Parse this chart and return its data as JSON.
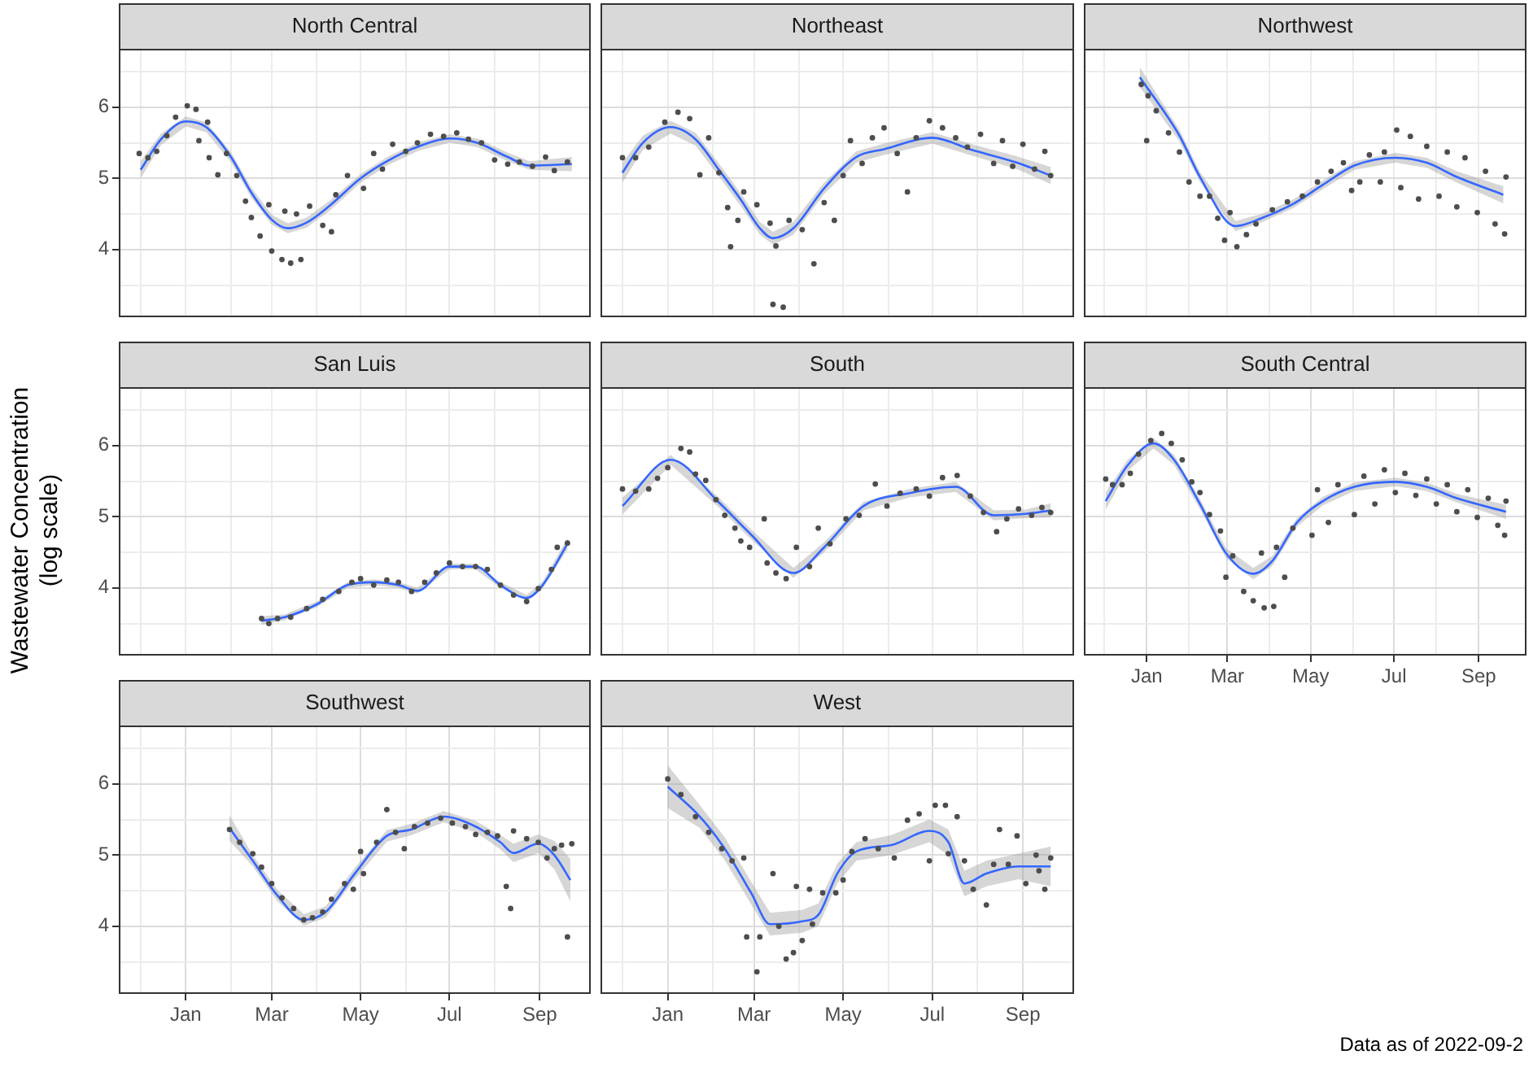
{
  "chart_data": [
    {
      "type": "scatter",
      "title": "North Central",
      "tick_labels": "y",
      "grid": true,
      "xlim": [
        "2021-11-16",
        "2022-10-06"
      ],
      "ylim": [
        3.05,
        6.82
      ],
      "xticks": [
        {
          "value": "2021-12-01",
          "label": null
        },
        {
          "value": "2022-01-01",
          "label": null
        },
        {
          "value": "2022-02-01",
          "label": null
        },
        {
          "value": "2022-03-01",
          "label": null
        },
        {
          "value": "2022-04-01",
          "label": null
        },
        {
          "value": "2022-05-01",
          "label": null
        },
        {
          "value": "2022-06-01",
          "label": null
        },
        {
          "value": "2022-07-01",
          "label": null
        },
        {
          "value": "2022-08-01",
          "label": null
        },
        {
          "value": "2022-09-01",
          "label": null
        }
      ],
      "yticks": [
        {
          "value": 3.5,
          "label": null
        },
        4,
        {
          "value": 4.5,
          "label": null
        },
        5,
        {
          "value": 5.5,
          "label": null
        },
        6,
        {
          "value": 6.5,
          "label": null
        }
      ],
      "series": [
        {
          "type": "scatter",
          "color": "#4d4d4d",
          "x": [
            "2021-11-30",
            "2021-12-06",
            "2021-12-12",
            "2021-12-19",
            "2021-12-25",
            "2022-01-02",
            "2022-01-08",
            "2022-01-10",
            "2022-01-16",
            "2022-01-17",
            "2022-01-23",
            "2022-01-29",
            "2022-02-05",
            "2022-02-11",
            "2022-02-15",
            "2022-02-21",
            "2022-02-27",
            "2022-03-01",
            "2022-03-08",
            "2022-03-10",
            "2022-03-14",
            "2022-03-18",
            "2022-03-21",
            "2022-03-27",
            "2022-04-05",
            "2022-04-11",
            "2022-04-14",
            "2022-04-22",
            "2022-05-03",
            "2022-05-10",
            "2022-05-16",
            "2022-05-23",
            "2022-06-01",
            "2022-06-09",
            "2022-06-18",
            "2022-06-27",
            "2022-07-06",
            "2022-07-14",
            "2022-07-23",
            "2022-08-01",
            "2022-08-10",
            "2022-08-18",
            "2022-08-27",
            "2022-09-05",
            "2022-09-11",
            "2022-09-20"
          ],
          "values": [
            5.35,
            5.29,
            5.38,
            5.6,
            5.86,
            6.02,
            5.97,
            5.53,
            5.79,
            5.29,
            5.05,
            5.35,
            5.04,
            4.68,
            4.45,
            4.19,
            4.63,
            3.98,
            3.86,
            4.54,
            3.81,
            4.5,
            3.86,
            4.61,
            4.34,
            4.25,
            4.77,
            5.04,
            4.86,
            5.35,
            5.13,
            5.48,
            5.38,
            5.5,
            5.62,
            5.59,
            5.64,
            5.55,
            5.5,
            5.26,
            5.2,
            5.23,
            5.17,
            5.3,
            5.11,
            5.23
          ]
        },
        {
          "type": "line",
          "color": "#3366ff",
          "x": [
            "2021-12-01",
            "2021-12-15",
            "2022-01-01",
            "2022-01-15",
            "2022-02-01",
            "2022-02-15",
            "2022-03-01",
            "2022-03-12",
            "2022-03-25",
            "2022-04-10",
            "2022-05-01",
            "2022-05-20",
            "2022-06-10",
            "2022-07-01",
            "2022-07-20",
            "2022-08-10",
            "2022-08-25",
            "2022-09-23"
          ],
          "values": [
            5.12,
            5.55,
            5.8,
            5.72,
            5.3,
            4.8,
            4.42,
            4.3,
            4.38,
            4.62,
            5.0,
            5.25,
            5.45,
            5.56,
            5.5,
            5.3,
            5.18,
            5.2
          ],
          "lower": [
            5.0,
            5.47,
            5.73,
            5.65,
            5.23,
            4.73,
            4.35,
            4.23,
            4.31,
            4.55,
            4.94,
            5.19,
            5.39,
            5.5,
            5.44,
            5.24,
            5.12,
            5.1
          ],
          "upper": [
            5.24,
            5.63,
            5.87,
            5.79,
            5.37,
            4.87,
            4.49,
            4.37,
            4.45,
            4.69,
            5.06,
            5.31,
            5.51,
            5.62,
            5.56,
            5.36,
            5.24,
            5.3
          ]
        }
      ]
    },
    {
      "type": "scatter",
      "title": "Northeast",
      "tick_labels": false,
      "grid": true,
      "xlim": [
        "2021-11-16",
        "2022-10-06"
      ],
      "ylim": [
        3.05,
        6.82
      ],
      "xticks": [
        {
          "value": "2021-12-01",
          "label": null
        },
        {
          "value": "2022-01-01",
          "label": null
        },
        {
          "value": "2022-02-01",
          "label": null
        },
        {
          "value": "2022-03-01",
          "label": null
        },
        {
          "value": "2022-04-01",
          "label": null
        },
        {
          "value": "2022-05-01",
          "label": null
        },
        {
          "value": "2022-06-01",
          "label": null
        },
        {
          "value": "2022-07-01",
          "label": null
        },
        {
          "value": "2022-08-01",
          "label": null
        },
        {
          "value": "2022-09-01",
          "label": null
        }
      ],
      "yticks": [
        {
          "value": 3.5,
          "label": null
        },
        4,
        {
          "value": 4.5,
          "label": null
        },
        5,
        {
          "value": 5.5,
          "label": null
        },
        6,
        {
          "value": 6.5,
          "label": null
        }
      ],
      "series": [
        {
          "type": "scatter",
          "color": "#4d4d4d",
          "x": [
            "2021-12-01",
            "2021-12-10",
            "2021-12-19",
            "2021-12-30",
            "2022-01-08",
            "2022-01-16",
            "2022-01-23",
            "2022-01-29",
            "2022-02-05",
            "2022-02-11",
            "2022-02-13",
            "2022-02-18",
            "2022-02-22",
            "2022-03-03",
            "2022-03-12",
            "2022-03-14",
            "2022-03-16",
            "2022-03-21",
            "2022-03-25",
            "2022-04-03",
            "2022-04-11",
            "2022-04-18",
            "2022-04-25",
            "2022-05-01",
            "2022-05-06",
            "2022-05-14",
            "2022-05-21",
            "2022-05-29",
            "2022-06-07",
            "2022-06-14",
            "2022-06-20",
            "2022-06-29",
            "2022-07-08",
            "2022-07-17",
            "2022-07-25",
            "2022-08-03",
            "2022-08-12",
            "2022-08-18",
            "2022-08-25",
            "2022-09-01",
            "2022-09-09",
            "2022-09-16",
            "2022-09-20"
          ],
          "values": [
            5.29,
            5.29,
            5.44,
            5.79,
            5.93,
            5.84,
            5.05,
            5.57,
            5.08,
            4.59,
            4.04,
            4.41,
            4.81,
            4.63,
            4.37,
            3.23,
            4.05,
            3.19,
            4.41,
            4.28,
            3.8,
            4.66,
            4.41,
            5.04,
            5.53,
            5.21,
            5.57,
            5.71,
            5.35,
            4.81,
            5.57,
            5.81,
            5.71,
            5.57,
            5.44,
            5.62,
            5.21,
            5.53,
            5.17,
            5.48,
            5.13,
            5.38,
            5.04
          ]
        },
        {
          "type": "line",
          "color": "#3366ff",
          "x": [
            "2021-12-01",
            "2021-12-15",
            "2022-01-03",
            "2022-01-20",
            "2022-02-05",
            "2022-02-20",
            "2022-03-05",
            "2022-03-14",
            "2022-03-28",
            "2022-04-18",
            "2022-05-10",
            "2022-05-29",
            "2022-07-01",
            "2022-07-28",
            "2022-08-28",
            "2022-09-20"
          ],
          "values": [
            5.08,
            5.5,
            5.72,
            5.55,
            5.12,
            4.7,
            4.3,
            4.16,
            4.3,
            4.86,
            5.3,
            5.41,
            5.57,
            5.4,
            5.22,
            5.04
          ],
          "lower": [
            4.94,
            5.4,
            5.63,
            5.46,
            5.03,
            4.61,
            4.21,
            4.07,
            4.21,
            4.78,
            5.22,
            5.33,
            5.49,
            5.32,
            5.13,
            4.92
          ],
          "upper": [
            5.22,
            5.6,
            5.81,
            5.64,
            5.21,
            4.79,
            4.39,
            4.25,
            4.39,
            4.94,
            5.38,
            5.49,
            5.65,
            5.48,
            5.31,
            5.16
          ]
        }
      ]
    },
    {
      "type": "scatter",
      "title": "Northwest",
      "tick_labels": false,
      "grid": true,
      "xlim": [
        "2021-11-16",
        "2022-10-06"
      ],
      "ylim": [
        3.05,
        6.82
      ],
      "xticks": [
        {
          "value": "2021-12-01",
          "label": null
        },
        {
          "value": "2022-01-01",
          "label": null
        },
        {
          "value": "2022-02-01",
          "label": null
        },
        {
          "value": "2022-03-01",
          "label": null
        },
        {
          "value": "2022-04-01",
          "label": null
        },
        {
          "value": "2022-05-01",
          "label": null
        },
        {
          "value": "2022-06-01",
          "label": null
        },
        {
          "value": "2022-07-01",
          "label": null
        },
        {
          "value": "2022-08-01",
          "label": null
        },
        {
          "value": "2022-09-01",
          "label": null
        }
      ],
      "yticks": [
        {
          "value": 3.5,
          "label": null
        },
        4,
        {
          "value": 4.5,
          "label": null
        },
        5,
        {
          "value": 5.5,
          "label": null
        },
        6,
        {
          "value": 6.5,
          "label": null
        }
      ],
      "series": [
        {
          "type": "scatter",
          "color": "#4d4d4d",
          "x": [
            "2021-12-28",
            "2022-01-01",
            "2022-01-02",
            "2022-01-08",
            "2022-01-17",
            "2022-01-25",
            "2022-02-01",
            "2022-02-09",
            "2022-02-16",
            "2022-02-22",
            "2022-02-27",
            "2022-03-03",
            "2022-03-08",
            "2022-03-15",
            "2022-03-22",
            "2022-04-03",
            "2022-04-14",
            "2022-04-25",
            "2022-05-06",
            "2022-05-16",
            "2022-05-25",
            "2022-05-31",
            "2022-06-06",
            "2022-06-13",
            "2022-06-21",
            "2022-06-24",
            "2022-07-03",
            "2022-07-06",
            "2022-07-13",
            "2022-07-19",
            "2022-07-25",
            "2022-08-03",
            "2022-08-09",
            "2022-08-16",
            "2022-08-22",
            "2022-08-31",
            "2022-09-06",
            "2022-09-13",
            "2022-09-20",
            "2022-09-21"
          ],
          "values": [
            6.32,
            5.53,
            6.16,
            5.95,
            5.64,
            5.37,
            4.95,
            4.75,
            4.75,
            4.44,
            4.13,
            4.52,
            4.04,
            4.21,
            4.36,
            4.56,
            4.67,
            4.75,
            4.95,
            5.1,
            5.22,
            4.83,
            4.95,
            5.33,
            4.95,
            5.37,
            5.68,
            4.87,
            5.59,
            4.71,
            5.45,
            4.75,
            5.37,
            4.6,
            5.29,
            4.52,
            5.1,
            4.36,
            4.22,
            5.02
          ]
        },
        {
          "type": "line",
          "color": "#3366ff",
          "x": [
            "2021-12-27",
            "2022-01-25",
            "2022-02-09",
            "2022-03-07",
            "2022-03-26",
            "2022-04-18",
            "2022-05-10",
            "2022-06-02",
            "2022-07-02",
            "2022-07-25",
            "2022-08-16",
            "2022-09-19"
          ],
          "values": [
            6.42,
            5.6,
            5.02,
            4.33,
            4.44,
            4.64,
            4.91,
            5.18,
            5.29,
            5.22,
            5.02,
            4.77
          ],
          "lower": [
            6.28,
            5.52,
            4.95,
            4.26,
            4.38,
            4.58,
            4.85,
            5.12,
            5.22,
            5.15,
            4.94,
            4.65
          ],
          "upper": [
            6.56,
            5.68,
            5.09,
            4.4,
            4.5,
            4.7,
            4.97,
            5.24,
            5.36,
            5.29,
            5.1,
            4.89
          ]
        }
      ]
    },
    {
      "type": "scatter",
      "title": "San Luis",
      "tick_labels": "y",
      "grid": true,
      "ylabel": "Wastewater Concentration (log scale)",
      "xlim": [
        "2021-11-16",
        "2022-10-06"
      ],
      "ylim": [
        3.05,
        6.82
      ],
      "xticks": [
        {
          "value": "2021-12-01",
          "label": null
        },
        {
          "value": "2022-01-01",
          "label": null
        },
        {
          "value": "2022-02-01",
          "label": null
        },
        {
          "value": "2022-03-01",
          "label": null
        },
        {
          "value": "2022-04-01",
          "label": null
        },
        {
          "value": "2022-05-01",
          "label": null
        },
        {
          "value": "2022-06-01",
          "label": null
        },
        {
          "value": "2022-07-01",
          "label": null
        },
        {
          "value": "2022-08-01",
          "label": null
        },
        {
          "value": "2022-09-01",
          "label": null
        }
      ],
      "yticks": [
        {
          "value": 3.5,
          "label": null
        },
        4,
        {
          "value": 4.5,
          "label": null
        },
        5,
        {
          "value": 5.5,
          "label": null
        },
        6,
        {
          "value": 6.5,
          "label": null
        }
      ],
      "series": [
        {
          "type": "scatter",
          "color": "#4d4d4d",
          "x": [
            "2022-02-22",
            "2022-02-27",
            "2022-03-05",
            "2022-03-14",
            "2022-03-25",
            "2022-04-05",
            "2022-04-16",
            "2022-04-25",
            "2022-05-01",
            "2022-05-10",
            "2022-05-19",
            "2022-05-27",
            "2022-06-05",
            "2022-06-14",
            "2022-06-22",
            "2022-07-01",
            "2022-07-10",
            "2022-07-19",
            "2022-07-27",
            "2022-08-05",
            "2022-08-14",
            "2022-08-23",
            "2022-08-31",
            "2022-09-09",
            "2022-09-13",
            "2022-09-20"
          ],
          "values": [
            3.57,
            3.5,
            3.57,
            3.59,
            3.71,
            3.84,
            3.95,
            4.08,
            4.13,
            4.04,
            4.11,
            4.08,
            3.95,
            4.08,
            4.21,
            4.35,
            4.3,
            4.3,
            4.26,
            4.04,
            3.9,
            3.81,
            3.99,
            4.26,
            4.57,
            4.63
          ]
        },
        {
          "type": "line",
          "color": "#3366ff",
          "x": [
            "2022-02-22",
            "2022-03-10",
            "2022-04-01",
            "2022-04-22",
            "2022-05-10",
            "2022-05-27",
            "2022-06-09",
            "2022-07-01",
            "2022-07-19",
            "2022-08-05",
            "2022-08-23",
            "2022-09-03",
            "2022-09-20"
          ],
          "values": [
            3.54,
            3.59,
            3.77,
            4.04,
            4.08,
            4.04,
            3.96,
            4.3,
            4.3,
            4.04,
            3.86,
            4.04,
            4.62
          ],
          "lower": [
            3.48,
            3.55,
            3.73,
            4.0,
            4.04,
            4.0,
            3.92,
            4.26,
            4.26,
            4.0,
            3.82,
            3.99,
            4.54
          ],
          "upper": [
            3.6,
            3.63,
            3.81,
            4.08,
            4.12,
            4.08,
            4.0,
            4.34,
            4.34,
            4.08,
            3.9,
            4.09,
            4.7
          ]
        }
      ]
    },
    {
      "type": "scatter",
      "title": "South",
      "tick_labels": false,
      "grid": true,
      "xlim": [
        "2021-11-16",
        "2022-10-06"
      ],
      "ylim": [
        3.05,
        6.82
      ],
      "xticks": [
        {
          "value": "2021-12-01",
          "label": null
        },
        {
          "value": "2022-01-01",
          "label": null
        },
        {
          "value": "2022-02-01",
          "label": null
        },
        {
          "value": "2022-03-01",
          "label": null
        },
        {
          "value": "2022-04-01",
          "label": null
        },
        {
          "value": "2022-05-01",
          "label": null
        },
        {
          "value": "2022-06-01",
          "label": null
        },
        {
          "value": "2022-07-01",
          "label": null
        },
        {
          "value": "2022-08-01",
          "label": null
        },
        {
          "value": "2022-09-01",
          "label": null
        }
      ],
      "yticks": [
        {
          "value": 3.5,
          "label": null
        },
        4,
        {
          "value": 4.5,
          "label": null
        },
        5,
        {
          "value": 5.5,
          "label": null
        },
        6,
        {
          "value": 6.5,
          "label": null
        }
      ],
      "series": [
        {
          "type": "scatter",
          "color": "#4d4d4d",
          "x": [
            "2021-12-01",
            "2021-12-10",
            "2021-12-19",
            "2021-12-25",
            "2022-01-01",
            "2022-01-10",
            "2022-01-16",
            "2022-01-20",
            "2022-01-27",
            "2022-02-03",
            "2022-02-09",
            "2022-02-16",
            "2022-02-20",
            "2022-02-26",
            "2022-03-08",
            "2022-03-10",
            "2022-03-16",
            "2022-03-23",
            "2022-03-30",
            "2022-04-08",
            "2022-04-14",
            "2022-04-22",
            "2022-05-03",
            "2022-05-12",
            "2022-05-23",
            "2022-05-31",
            "2022-06-09",
            "2022-06-20",
            "2022-06-29",
            "2022-07-08",
            "2022-07-18",
            "2022-07-27",
            "2022-08-05",
            "2022-08-14",
            "2022-08-21",
            "2022-08-29",
            "2022-09-07",
            "2022-09-14",
            "2022-09-20"
          ],
          "values": [
            5.39,
            5.36,
            5.39,
            5.54,
            5.69,
            5.96,
            5.91,
            5.6,
            5.51,
            5.24,
            5.02,
            4.84,
            4.66,
            4.57,
            4.97,
            4.35,
            4.21,
            4.13,
            4.57,
            4.3,
            4.84,
            4.62,
            4.97,
            5.02,
            5.46,
            5.15,
            5.33,
            5.39,
            5.29,
            5.55,
            5.58,
            5.29,
            5.06,
            4.79,
            4.97,
            5.11,
            5.02,
            5.13,
            5.06
          ]
        },
        {
          "type": "line",
          "color": "#3366ff",
          "x": [
            "2021-12-01",
            "2022-01-03",
            "2022-02-05",
            "2022-02-27",
            "2022-03-28",
            "2022-04-18",
            "2022-05-15",
            "2022-06-15",
            "2022-07-17",
            "2022-08-12",
            "2022-09-03",
            "2022-09-20"
          ],
          "values": [
            5.15,
            5.8,
            5.2,
            4.75,
            4.21,
            4.57,
            5.15,
            5.33,
            5.42,
            5.02,
            5.04,
            5.09
          ],
          "lower": [
            5.03,
            5.73,
            5.13,
            4.68,
            4.14,
            4.5,
            5.09,
            5.27,
            5.35,
            4.95,
            4.98,
            4.99
          ],
          "upper": [
            5.27,
            5.87,
            5.27,
            4.82,
            4.28,
            4.64,
            5.21,
            5.39,
            5.49,
            5.09,
            5.1,
            5.19
          ]
        }
      ]
    },
    {
      "type": "scatter",
      "title": "South Central",
      "tick_labels": "x",
      "grid": true,
      "xlim": [
        "2021-11-16",
        "2022-10-06"
      ],
      "ylim": [
        3.05,
        6.82
      ],
      "xticks": [
        {
          "value": "2021-12-01",
          "label": null
        },
        {
          "value": "2022-01-01",
          "label": "Jan"
        },
        {
          "value": "2022-02-01",
          "label": null
        },
        {
          "value": "2022-03-01",
          "label": "Mar"
        },
        {
          "value": "2022-04-01",
          "label": null
        },
        {
          "value": "2022-05-01",
          "label": "May"
        },
        {
          "value": "2022-06-01",
          "label": null
        },
        {
          "value": "2022-07-01",
          "label": "Jul"
        },
        {
          "value": "2022-08-01",
          "label": null
        },
        {
          "value": "2022-09-01",
          "label": "Sep"
        }
      ],
      "yticks": [
        {
          "value": 3.5,
          "label": null
        },
        4,
        {
          "value": 4.5,
          "label": null
        },
        5,
        {
          "value": 5.5,
          "label": null
        },
        6,
        {
          "value": 6.5,
          "label": null
        }
      ],
      "series": [
        {
          "type": "scatter",
          "color": "#4d4d4d",
          "x": [
            "2021-12-02",
            "2021-12-07",
            "2021-12-14",
            "2021-12-20",
            "2021-12-26",
            "2022-01-04",
            "2022-01-12",
            "2022-01-19",
            "2022-01-27",
            "2022-02-03",
            "2022-02-09",
            "2022-02-16",
            "2022-02-24",
            "2022-02-28",
            "2022-03-05",
            "2022-03-13",
            "2022-03-20",
            "2022-03-26",
            "2022-03-28",
            "2022-04-04",
            "2022-04-06",
            "2022-04-12",
            "2022-04-18",
            "2022-05-02",
            "2022-05-06",
            "2022-05-14",
            "2022-05-21",
            "2022-06-02",
            "2022-06-09",
            "2022-06-17",
            "2022-06-24",
            "2022-07-02",
            "2022-07-09",
            "2022-07-17",
            "2022-07-25",
            "2022-08-01",
            "2022-08-09",
            "2022-08-16",
            "2022-08-24",
            "2022-08-31",
            "2022-09-08",
            "2022-09-15",
            "2022-09-20",
            "2022-09-21"
          ],
          "values": [
            5.53,
            5.45,
            5.45,
            5.61,
            5.88,
            6.07,
            6.17,
            6.03,
            5.8,
            5.49,
            5.34,
            5.03,
            4.8,
            4.15,
            4.45,
            3.95,
            3.82,
            4.49,
            3.72,
            3.74,
            4.57,
            4.15,
            4.84,
            4.74,
            5.38,
            4.92,
            5.45,
            5.03,
            5.57,
            5.18,
            5.66,
            5.34,
            5.61,
            5.3,
            5.53,
            5.18,
            5.45,
            5.07,
            5.38,
            4.99,
            5.26,
            4.88,
            4.74,
            5.22
          ]
        },
        {
          "type": "line",
          "color": "#3366ff",
          "x": [
            "2021-12-02",
            "2021-12-18",
            "2022-01-06",
            "2022-01-21",
            "2022-02-09",
            "2022-02-28",
            "2022-03-20",
            "2022-04-03",
            "2022-04-21",
            "2022-05-10",
            "2022-06-02",
            "2022-07-02",
            "2022-07-25",
            "2022-08-16",
            "2022-09-21"
          ],
          "values": [
            5.22,
            5.72,
            6.03,
            5.8,
            5.18,
            4.49,
            4.2,
            4.38,
            4.92,
            5.22,
            5.42,
            5.49,
            5.42,
            5.26,
            5.07
          ],
          "lower": [
            5.1,
            5.64,
            5.96,
            5.73,
            5.11,
            4.42,
            4.12,
            4.31,
            4.86,
            5.16,
            5.36,
            5.43,
            5.36,
            5.2,
            4.97
          ],
          "upper": [
            5.34,
            5.8,
            6.1,
            5.87,
            5.25,
            4.56,
            4.28,
            4.45,
            4.98,
            5.28,
            5.48,
            5.55,
            5.48,
            5.32,
            5.17
          ]
        }
      ]
    },
    {
      "type": "scatter",
      "title": "Southwest",
      "grid": true,
      "xlim": [
        "2021-11-16",
        "2022-10-06"
      ],
      "ylim": [
        3.05,
        6.82
      ],
      "xticks": [
        {
          "value": "2021-12-01",
          "label": null
        },
        {
          "value": "2022-01-01",
          "label": "Jan"
        },
        {
          "value": "2022-02-01",
          "label": null
        },
        {
          "value": "2022-03-01",
          "label": "Mar"
        },
        {
          "value": "2022-04-01",
          "label": null
        },
        {
          "value": "2022-05-01",
          "label": "May"
        },
        {
          "value": "2022-06-01",
          "label": null
        },
        {
          "value": "2022-07-01",
          "label": "Jul"
        },
        {
          "value": "2022-08-01",
          "label": null
        },
        {
          "value": "2022-09-01",
          "label": "Sep"
        }
      ],
      "yticks": [
        {
          "value": 3.5,
          "label": null
        },
        4,
        {
          "value": 4.5,
          "label": null
        },
        5,
        {
          "value": 5.5,
          "label": null
        },
        6,
        {
          "value": 6.5,
          "label": null
        }
      ],
      "series": [
        {
          "type": "scatter",
          "color": "#4d4d4d",
          "x": [
            "2022-01-31",
            "2022-02-07",
            "2022-02-16",
            "2022-02-22",
            "2022-03-01",
            "2022-03-08",
            "2022-03-16",
            "2022-03-23",
            "2022-03-29",
            "2022-04-05",
            "2022-04-11",
            "2022-04-20",
            "2022-04-26",
            "2022-05-01",
            "2022-05-03",
            "2022-05-12",
            "2022-05-19",
            "2022-05-25",
            "2022-05-31",
            "2022-06-07",
            "2022-06-16",
            "2022-06-25",
            "2022-07-03",
            "2022-07-12",
            "2022-07-19",
            "2022-07-27",
            "2022-08-03",
            "2022-08-09",
            "2022-08-12",
            "2022-08-14",
            "2022-08-23",
            "2022-08-31",
            "2022-09-06",
            "2022-09-11",
            "2022-09-16",
            "2022-09-20",
            "2022-09-23"
          ],
          "values": [
            5.36,
            5.18,
            5.02,
            4.83,
            4.6,
            4.4,
            4.25,
            4.09,
            4.12,
            4.2,
            4.38,
            4.6,
            4.52,
            5.05,
            4.74,
            5.18,
            5.64,
            5.32,
            5.09,
            5.4,
            5.45,
            5.52,
            5.45,
            5.4,
            5.29,
            5.32,
            5.27,
            4.56,
            4.25,
            5.34,
            5.23,
            5.18,
            4.96,
            5.09,
            5.14,
            3.85,
            5.16
          ]
        },
        {
          "type": "line",
          "color": "#3366ff",
          "x": [
            "2022-01-31",
            "2022-02-16",
            "2022-03-05",
            "2022-03-23",
            "2022-04-07",
            "2022-04-27",
            "2022-05-19",
            "2022-06-05",
            "2022-06-27",
            "2022-07-19",
            "2022-08-05",
            "2022-08-14",
            "2022-08-31",
            "2022-09-11",
            "2022-09-22"
          ],
          "values": [
            5.38,
            4.92,
            4.43,
            4.09,
            4.2,
            4.74,
            5.27,
            5.36,
            5.54,
            5.4,
            5.18,
            5.03,
            5.16,
            5.0,
            4.65
          ],
          "lower": [
            5.2,
            4.84,
            4.35,
            4.01,
            4.12,
            4.66,
            5.19,
            5.28,
            5.46,
            5.32,
            5.08,
            4.9,
            5.03,
            4.8,
            4.35
          ],
          "upper": [
            5.56,
            5.0,
            4.51,
            4.17,
            4.28,
            4.82,
            5.35,
            5.44,
            5.62,
            5.48,
            5.28,
            5.16,
            5.29,
            5.2,
            4.95
          ]
        }
      ]
    },
    {
      "type": "scatter",
      "title": "West",
      "tick_labels": "x",
      "grid": true,
      "annotations": [
        "Data as of 2022-09-2"
      ],
      "xlim": [
        "2021-11-16",
        "2022-10-06"
      ],
      "ylim": [
        3.05,
        6.82
      ],
      "xticks": [
        {
          "value": "2021-12-01",
          "label": null
        },
        {
          "value": "2022-01-01",
          "label": "Jan"
        },
        {
          "value": "2022-02-01",
          "label": null
        },
        {
          "value": "2022-03-01",
          "label": "Mar"
        },
        {
          "value": "2022-04-01",
          "label": null
        },
        {
          "value": "2022-05-01",
          "label": "May"
        },
        {
          "value": "2022-06-01",
          "label": null
        },
        {
          "value": "2022-07-01",
          "label": "Jul"
        },
        {
          "value": "2022-08-01",
          "label": null
        },
        {
          "value": "2022-09-01",
          "label": "Sep"
        }
      ],
      "yticks": [
        {
          "value": 3.5,
          "label": null
        },
        4,
        {
          "value": 4.5,
          "label": null
        },
        5,
        {
          "value": 5.5,
          "label": null
        },
        6,
        {
          "value": 6.5,
          "label": null
        }
      ],
      "series": [
        {
          "type": "scatter",
          "color": "#4d4d4d",
          "x": [
            "2022-01-01",
            "2022-01-10",
            "2022-01-20",
            "2022-01-29",
            "2022-02-07",
            "2022-02-14",
            "2022-02-22",
            "2022-02-24",
            "2022-03-03",
            "2022-03-05",
            "2022-03-14",
            "2022-03-18",
            "2022-03-23",
            "2022-03-28",
            "2022-03-30",
            "2022-04-03",
            "2022-04-08",
            "2022-04-10",
            "2022-04-17",
            "2022-04-26",
            "2022-05-01",
            "2022-05-07",
            "2022-05-16",
            "2022-05-25",
            "2022-06-05",
            "2022-06-14",
            "2022-06-22",
            "2022-06-29",
            "2022-07-03",
            "2022-07-10",
            "2022-07-12",
            "2022-07-18",
            "2022-07-23",
            "2022-07-29",
            "2022-08-07",
            "2022-08-12",
            "2022-08-16",
            "2022-08-22",
            "2022-08-28",
            "2022-09-03",
            "2022-09-10",
            "2022-09-12",
            "2022-09-16",
            "2022-09-20"
          ],
          "values": [
            6.07,
            5.85,
            5.54,
            5.32,
            5.09,
            4.92,
            4.96,
            3.85,
            3.36,
            3.85,
            4.74,
            4.0,
            3.54,
            3.63,
            4.56,
            3.8,
            4.52,
            4.03,
            4.47,
            4.47,
            4.65,
            5.05,
            5.23,
            5.09,
            4.96,
            5.49,
            5.58,
            4.92,
            5.7,
            5.7,
            5.02,
            5.54,
            4.92,
            4.52,
            4.3,
            4.87,
            5.36,
            4.87,
            5.27,
            4.6,
            5.0,
            4.78,
            4.52,
            4.96
          ]
        },
        {
          "type": "line",
          "color": "#3366ff",
          "x": [
            "2022-01-01",
            "2022-01-23",
            "2022-02-09",
            "2022-02-27",
            "2022-03-12",
            "2022-04-03",
            "2022-04-14",
            "2022-04-27",
            "2022-05-10",
            "2022-06-03",
            "2022-06-29",
            "2022-07-12",
            "2022-07-23",
            "2022-08-07",
            "2022-08-29",
            "2022-09-20"
          ],
          "values": [
            5.96,
            5.54,
            5.09,
            4.47,
            4.03,
            4.07,
            4.16,
            4.74,
            5.05,
            5.14,
            5.34,
            5.18,
            4.6,
            4.74,
            4.84,
            4.84
          ],
          "lower": [
            5.66,
            5.38,
            4.93,
            4.31,
            3.87,
            3.91,
            4.0,
            4.6,
            4.92,
            5.0,
            5.18,
            5.0,
            4.42,
            4.56,
            4.66,
            4.56
          ],
          "upper": [
            6.26,
            5.7,
            5.25,
            4.63,
            4.19,
            4.23,
            4.32,
            4.88,
            5.18,
            5.28,
            5.5,
            5.36,
            4.78,
            4.92,
            5.02,
            5.12
          ]
        }
      ]
    }
  ]
}
